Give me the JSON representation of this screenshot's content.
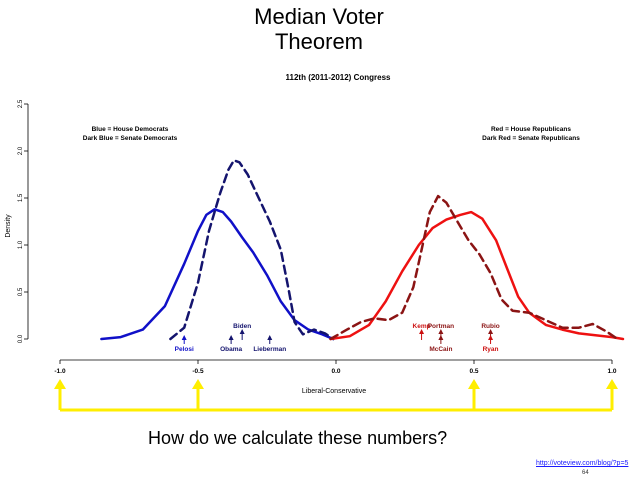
{
  "slide": {
    "title_line1": "Median Voter",
    "title_line2": "Theorem",
    "question": "How do we calculate these numbers?",
    "source_url": "http://voteview.com/blog/?p=5",
    "page_number": "64"
  },
  "chart_data": {
    "type": "line",
    "title": "112th (2011-2012) Congress",
    "xlabel": "Liberal-Conservative",
    "ylabel": "Density",
    "xlim": [
      -1.0,
      1.0
    ],
    "ylim": [
      0.0,
      2.5
    ],
    "yticks": [
      "0.0",
      "0.5",
      "1.0",
      "1.5",
      "2.0",
      "2.5"
    ],
    "xticks": [
      "-1.0",
      "-0.5",
      "0.0",
      "0.5",
      "1.0"
    ],
    "legend_left": [
      "Blue = House Democrats",
      "Dark Blue = Senate Democrats"
    ],
    "legend_right": [
      "Red = House Republicans",
      "Dark Red = Senate Republicans"
    ],
    "series": [
      {
        "color": "#1010c8",
        "dash": "solid",
        "width": 2.5,
        "x": [
          -0.85,
          -0.78,
          -0.7,
          -0.62,
          -0.55,
          -0.5,
          -0.47,
          -0.44,
          -0.41,
          -0.38,
          -0.34,
          -0.3,
          -0.25,
          -0.2,
          -0.15,
          -0.1,
          -0.05,
          -0.01
        ],
        "y": [
          0.0,
          0.02,
          0.1,
          0.35,
          0.8,
          1.15,
          1.32,
          1.38,
          1.35,
          1.25,
          1.08,
          0.92,
          0.68,
          0.4,
          0.2,
          0.1,
          0.05,
          0.0
        ]
      },
      {
        "color": "#14146e",
        "dash": "dashed",
        "width": 2.5,
        "x": [
          -0.6,
          -0.55,
          -0.5,
          -0.46,
          -0.42,
          -0.39,
          -0.37,
          -0.35,
          -0.32,
          -0.28,
          -0.24,
          -0.2,
          -0.17,
          -0.15,
          -0.12,
          -0.08,
          -0.04,
          -0.01
        ],
        "y": [
          0.0,
          0.12,
          0.6,
          1.15,
          1.55,
          1.8,
          1.9,
          1.88,
          1.75,
          1.5,
          1.25,
          0.95,
          0.5,
          0.18,
          0.05,
          0.1,
          0.06,
          0.0
        ]
      },
      {
        "color": "#ee1111",
        "dash": "solid",
        "width": 2.5,
        "x": [
          -0.02,
          0.05,
          0.12,
          0.18,
          0.24,
          0.3,
          0.35,
          0.4,
          0.45,
          0.49,
          0.53,
          0.58,
          0.62,
          0.66,
          0.7,
          0.76,
          0.82,
          0.88,
          0.94,
          1.0,
          1.04
        ],
        "y": [
          0.0,
          0.03,
          0.15,
          0.4,
          0.72,
          1.0,
          1.18,
          1.27,
          1.32,
          1.35,
          1.28,
          1.05,
          0.75,
          0.45,
          0.28,
          0.15,
          0.1,
          0.06,
          0.04,
          0.02,
          0.0
        ]
      },
      {
        "color": "#8b1414",
        "dash": "dashed",
        "width": 2.5,
        "x": [
          -0.02,
          0.04,
          0.09,
          0.14,
          0.19,
          0.24,
          0.28,
          0.31,
          0.34,
          0.37,
          0.4,
          0.44,
          0.48,
          0.52,
          0.56,
          0.6,
          0.64,
          0.7,
          0.76,
          0.82,
          0.88,
          0.93,
          0.98,
          1.02
        ],
        "y": [
          0.0,
          0.1,
          0.18,
          0.22,
          0.2,
          0.28,
          0.55,
          0.95,
          1.35,
          1.52,
          1.45,
          1.25,
          1.05,
          0.9,
          0.7,
          0.42,
          0.3,
          0.28,
          0.2,
          0.12,
          0.12,
          0.16,
          0.08,
          0.0
        ]
      }
    ],
    "markers": [
      {
        "label": "Pelosi",
        "x": -0.55,
        "color": "#1010c8",
        "row": "low"
      },
      {
        "label": "Obama",
        "x": -0.38,
        "color": "#14146e",
        "row": "low"
      },
      {
        "label": "Biden",
        "x": -0.34,
        "color": "#14146e",
        "row": "high"
      },
      {
        "label": "Lieberman",
        "x": -0.24,
        "color": "#14146e",
        "row": "low"
      },
      {
        "label": "Kemp",
        "x": 0.31,
        "color": "#cc1111",
        "row": "high"
      },
      {
        "label": "Portman",
        "x": 0.38,
        "color": "#8b1414",
        "row": "high"
      },
      {
        "label": "McCain",
        "x": 0.38,
        "color": "#8b1414",
        "row": "low"
      },
      {
        "label": "Rubio",
        "x": 0.56,
        "color": "#8b1414",
        "row": "high"
      },
      {
        "label": "Ryan",
        "x": 0.56,
        "color": "#cc1111",
        "row": "low"
      }
    ],
    "bracket_ticks": [
      -1.0,
      -0.5,
      0.5,
      1.0
    ],
    "bracket_color": "#ffee00"
  }
}
